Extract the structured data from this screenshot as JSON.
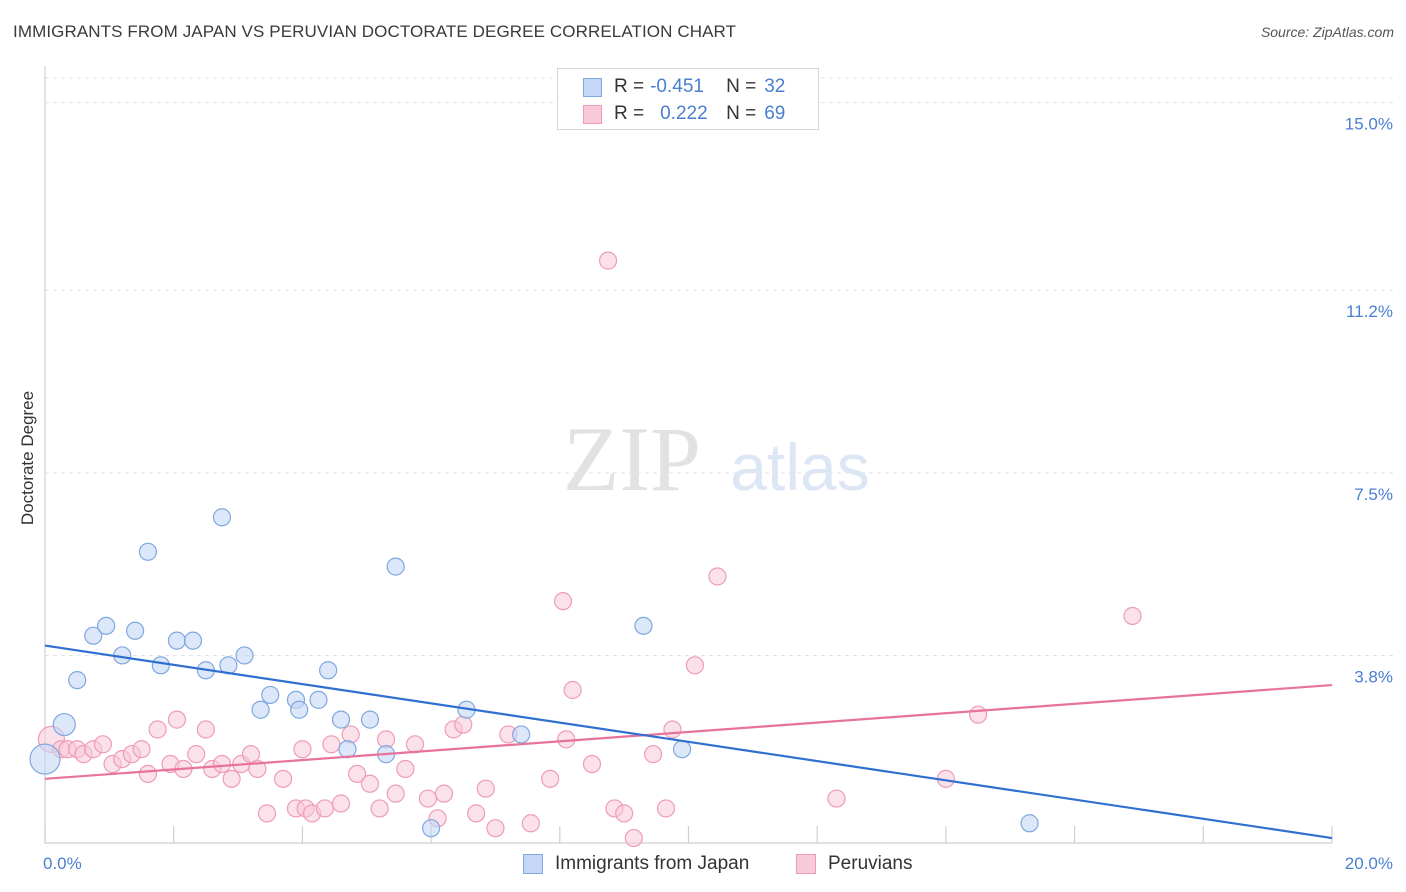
{
  "header": {
    "title": "IMMIGRANTS FROM JAPAN VS PERUVIAN DOCTORATE DEGREE CORRELATION CHART",
    "source": "Source: ZipAtlas.com"
  },
  "watermark": {
    "zip": "ZIP",
    "atlas": "atlas"
  },
  "legend": {
    "rows": [
      {
        "r_label": "R =",
        "r_value": "-0.451",
        "n_label": "N =",
        "n_value": "32"
      },
      {
        "r_label": "R =",
        "r_value": "0.222",
        "n_label": "N =",
        "n_value": "69"
      }
    ]
  },
  "colors": {
    "japan_fill": "#c4d7f5",
    "japan_stroke": "#7fa7e0",
    "japan_line": "#2f6fd0",
    "peru_fill": "#f8c9d8",
    "peru_stroke": "#ee9cb8",
    "peru_line": "#e8739a",
    "tick_label": "#4a7fd0",
    "grid": "#e3e3e3"
  },
  "chart_data": {
    "type": "scatter",
    "title": "IMMIGRANTS FROM JAPAN VS PERUVIAN DOCTORATE DEGREE CORRELATION CHART",
    "xlabel": "",
    "ylabel": "Doctorate Degree",
    "xlim": [
      0,
      20
    ],
    "ylim": [
      0,
      15.5
    ],
    "x_tick_labels": [
      "0.0%",
      "20.0%"
    ],
    "y_ticks": [
      3.8,
      7.5,
      11.2,
      15.0
    ],
    "y_tick_labels": [
      "3.8%",
      "7.5%",
      "11.2%",
      "15.0%"
    ],
    "legend_position": "top-center",
    "series": [
      {
        "name": "Immigrants from Japan",
        "r": -0.451,
        "n": 32,
        "points": [
          [
            0.0,
            1.7
          ],
          [
            0.3,
            2.4
          ],
          [
            0.5,
            3.3
          ],
          [
            0.75,
            4.2
          ],
          [
            0.95,
            4.4
          ],
          [
            1.2,
            3.8
          ],
          [
            1.4,
            4.3
          ],
          [
            1.6,
            5.9
          ],
          [
            1.8,
            3.6
          ],
          [
            2.05,
            4.1
          ],
          [
            2.3,
            4.1
          ],
          [
            2.5,
            3.5
          ],
          [
            2.75,
            6.6
          ],
          [
            2.85,
            3.6
          ],
          [
            3.1,
            3.8
          ],
          [
            3.35,
            2.7
          ],
          [
            3.5,
            3.0
          ],
          [
            3.9,
            2.9
          ],
          [
            3.95,
            2.7
          ],
          [
            4.25,
            2.9
          ],
          [
            4.4,
            3.5
          ],
          [
            4.6,
            2.5
          ],
          [
            4.7,
            1.9
          ],
          [
            5.05,
            2.5
          ],
          [
            5.3,
            1.8
          ],
          [
            5.45,
            5.6
          ],
          [
            6.0,
            0.3
          ],
          [
            6.55,
            2.7
          ],
          [
            7.4,
            2.2
          ],
          [
            9.3,
            4.4
          ],
          [
            9.9,
            1.9
          ],
          [
            15.3,
            0.4
          ]
        ],
        "trend": {
          "x": [
            0,
            20
          ],
          "y": [
            4.0,
            0.1
          ]
        }
      },
      {
        "name": "Peruvians",
        "r": 0.222,
        "n": 69,
        "points": [
          [
            0.1,
            2.1
          ],
          [
            0.25,
            1.9
          ],
          [
            0.35,
            1.9
          ],
          [
            0.5,
            1.9
          ],
          [
            0.6,
            1.8
          ],
          [
            0.75,
            1.9
          ],
          [
            0.9,
            2.0
          ],
          [
            1.05,
            1.6
          ],
          [
            1.2,
            1.7
          ],
          [
            1.35,
            1.8
          ],
          [
            1.5,
            1.9
          ],
          [
            1.6,
            1.4
          ],
          [
            1.75,
            2.3
          ],
          [
            1.95,
            1.6
          ],
          [
            2.05,
            2.5
          ],
          [
            2.15,
            1.5
          ],
          [
            2.35,
            1.8
          ],
          [
            2.5,
            2.3
          ],
          [
            2.6,
            1.5
          ],
          [
            2.75,
            1.6
          ],
          [
            2.9,
            1.3
          ],
          [
            3.05,
            1.6
          ],
          [
            3.2,
            1.8
          ],
          [
            3.3,
            1.5
          ],
          [
            3.45,
            0.6
          ],
          [
            3.7,
            1.3
          ],
          [
            3.9,
            0.7
          ],
          [
            4.0,
            1.9
          ],
          [
            4.05,
            0.7
          ],
          [
            4.15,
            0.6
          ],
          [
            4.35,
            0.7
          ],
          [
            4.45,
            2.0
          ],
          [
            4.6,
            0.8
          ],
          [
            4.75,
            2.2
          ],
          [
            4.85,
            1.4
          ],
          [
            5.05,
            1.2
          ],
          [
            5.2,
            0.7
          ],
          [
            5.3,
            2.1
          ],
          [
            5.45,
            1.0
          ],
          [
            5.6,
            1.5
          ],
          [
            5.75,
            2.0
          ],
          [
            5.95,
            0.9
          ],
          [
            6.1,
            0.5
          ],
          [
            6.2,
            1.0
          ],
          [
            6.35,
            2.3
          ],
          [
            6.5,
            2.4
          ],
          [
            6.7,
            0.6
          ],
          [
            6.85,
            1.1
          ],
          [
            7.0,
            0.3
          ],
          [
            7.2,
            2.2
          ],
          [
            7.55,
            0.4
          ],
          [
            7.85,
            1.3
          ],
          [
            8.05,
            4.9
          ],
          [
            8.1,
            2.1
          ],
          [
            8.2,
            3.1
          ],
          [
            8.5,
            1.6
          ],
          [
            8.75,
            11.8
          ],
          [
            8.85,
            0.7
          ],
          [
            9.0,
            0.6
          ],
          [
            9.15,
            0.1
          ],
          [
            9.45,
            1.8
          ],
          [
            9.65,
            0.7
          ],
          [
            9.75,
            2.3
          ],
          [
            10.1,
            3.6
          ],
          [
            10.45,
            5.4
          ],
          [
            12.3,
            0.9
          ],
          [
            14.0,
            1.3
          ],
          [
            14.5,
            2.6
          ],
          [
            16.9,
            4.6
          ]
        ],
        "trend": {
          "x": [
            0,
            20
          ],
          "y": [
            1.3,
            3.2
          ]
        }
      }
    ]
  }
}
